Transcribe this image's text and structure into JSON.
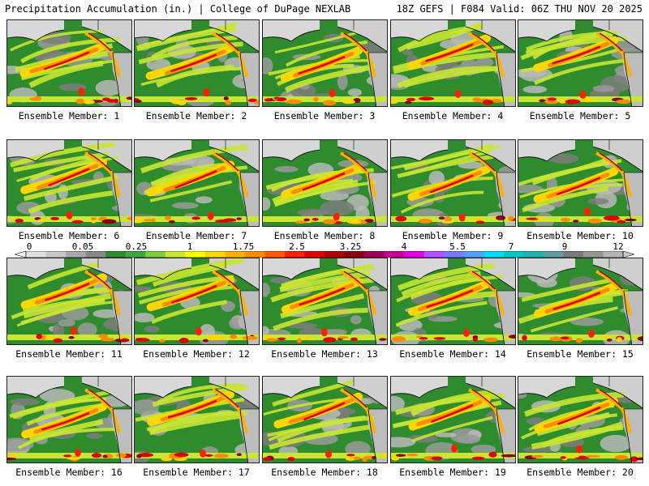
{
  "header": {
    "left_title": "Precipitation Accumulation (in.) | College of DuPage NEXLAB",
    "right_title": "18Z GEFS | F084 Valid: 06Z THU NOV 20 2025"
  },
  "panels": [
    {
      "label": "Ensemble Member: 1"
    },
    {
      "label": "Ensemble Member: 2"
    },
    {
      "label": "Ensemble Member: 3"
    },
    {
      "label": "Ensemble Member: 4"
    },
    {
      "label": "Ensemble Member: 5"
    },
    {
      "label": "Ensemble Member: 6"
    },
    {
      "label": "Ensemble Member: 7"
    },
    {
      "label": "Ensemble Member: 8"
    },
    {
      "label": "Ensemble Member: 9"
    },
    {
      "label": "Ensemble Member: 10"
    },
    {
      "label": "Ensemble Member: 11"
    },
    {
      "label": "Ensemble Member: 12"
    },
    {
      "label": "Ensemble Member: 13"
    },
    {
      "label": "Ensemble Member: 14"
    },
    {
      "label": "Ensemble Member: 15"
    },
    {
      "label": "Ensemble Member: 16"
    },
    {
      "label": "Ensemble Member: 17"
    },
    {
      "label": "Ensemble Member: 18"
    },
    {
      "label": "Ensemble Member: 19"
    },
    {
      "label": "Ensemble Member: 20"
    }
  ],
  "legend": {
    "tick_labels": [
      "0",
      "0.05",
      "0.25",
      "1",
      "1.75",
      "2.5",
      "3.25",
      "4",
      "5.5",
      "7",
      "9",
      "12"
    ],
    "colors": [
      "#e0e0e0",
      "#c8c8c8",
      "#a8a8a8",
      "#888888",
      "#2e8b2e",
      "#3aa83a",
      "#7ccd3a",
      "#c8e632",
      "#ffff00",
      "#ffd700",
      "#ffb000",
      "#ff8c00",
      "#ff5a00",
      "#ff2000",
      "#e00000",
      "#b40000",
      "#8c0014",
      "#a0005a",
      "#c80096",
      "#e600e6",
      "#b450ff",
      "#7878ff",
      "#50a0ff",
      "#00dcff",
      "#00c8c8",
      "#20b2aa",
      "#5f9ea0",
      "#7a7a7a",
      "#969696",
      "#b4b4b4"
    ]
  }
}
